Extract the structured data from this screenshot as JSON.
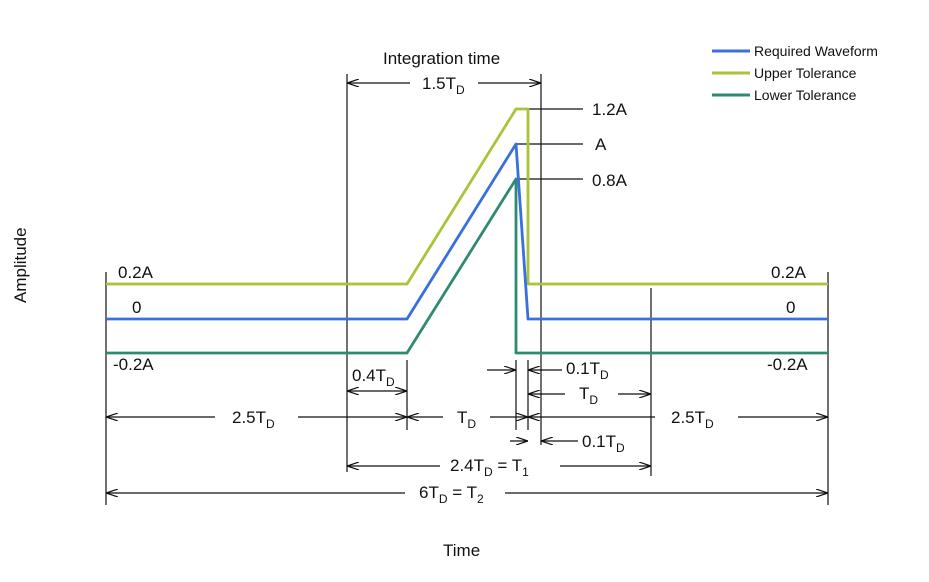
{
  "legend": {
    "required": "Required Waveform",
    "upper": "Upper Tolerance",
    "lower": "Lower Tolerance"
  },
  "colors": {
    "required": "#3a6fe0",
    "upper": "#a8c43a",
    "lower": "#2f8a72"
  },
  "axes": {
    "ylabel": "Amplitude",
    "xlabel": "Time"
  },
  "levels": {
    "upper_left": "0.2A",
    "zero_left": "0",
    "lower_left": "-0.2A",
    "upper_right": "0.2A",
    "zero_right": "0",
    "lower_right": "-0.2A",
    "peak_upper": "1.2A",
    "peak": "A",
    "peak_lower": "0.8A"
  },
  "dimensions": {
    "integration_title": "Integration time",
    "integration_main": "1.5T",
    "integration_sub": "D",
    "pre_main": "2.5T",
    "pre_sub": "D",
    "rise_tol_main": "0.4T",
    "rise_tol_sub": "D",
    "pulse_main": "T",
    "pulse_sub": "D",
    "fall_tol_main": "0.1T",
    "fall_tol_sub": "D",
    "post_td_main": "T",
    "post_td_sub": "D",
    "post_main": "2.5T",
    "post_sub": "D",
    "fall_main": "0.1T",
    "fall_sub": "D",
    "t1_a": "2.4T",
    "t1_a_sub": "D",
    "t1_b": " = T",
    "t1_b_sub": "1",
    "t2_a": "6T",
    "t2_a_sub": "D",
    "t2_b": " = T",
    "t2_b_sub": "2"
  }
}
